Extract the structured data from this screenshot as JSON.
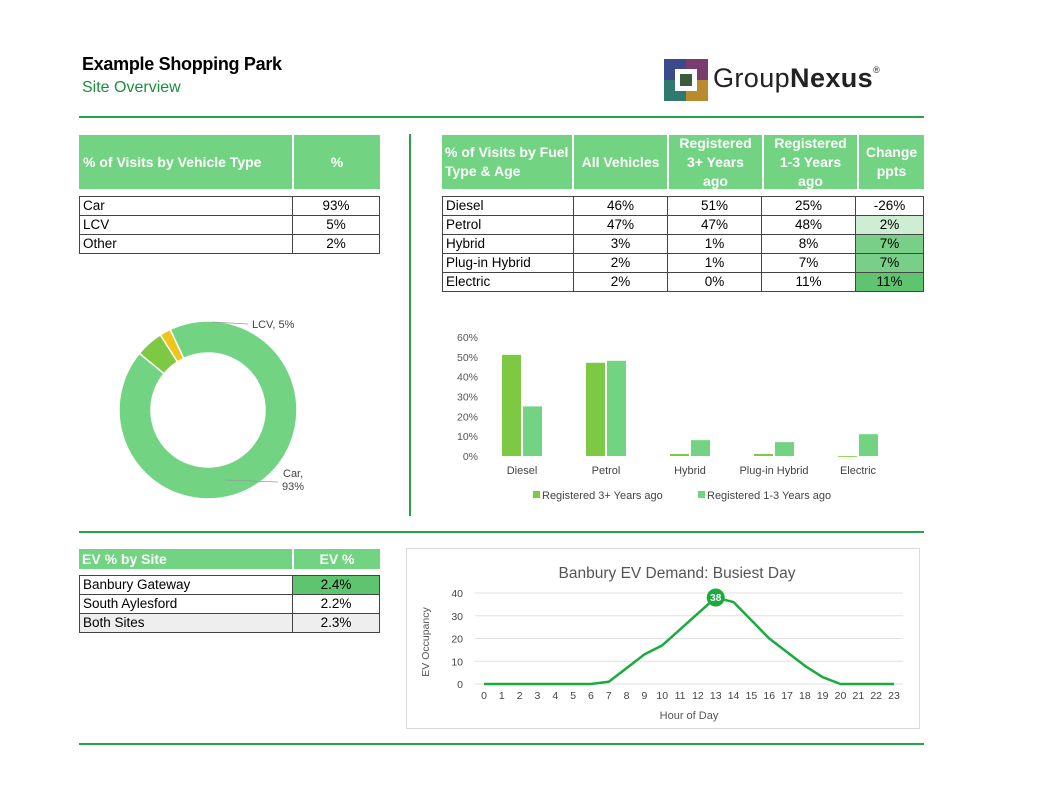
{
  "header": {
    "title": "Example Shopping Park",
    "subtitle": "Site Overview"
  },
  "logo": {
    "text_regular": "Group",
    "text_bold": "Nexus",
    "mark": "®"
  },
  "vehicle_table": {
    "headers": [
      "% of Visits by Vehicle Type",
      "%"
    ],
    "rows": [
      {
        "label": "Car",
        "value": "93%"
      },
      {
        "label": "LCV",
        "value": "5%"
      },
      {
        "label": "Other",
        "value": "2%"
      }
    ]
  },
  "fuel_table": {
    "headers": [
      "% of Visits by Fuel Type & Age",
      "All Vehicles",
      "Registered 3+ Years ago",
      "Registered 1-3 Years ago",
      "Change ppts"
    ],
    "rows": [
      {
        "fuel": "Diesel",
        "all": "46%",
        "r3": "51%",
        "r1": "25%",
        "change": "-26%"
      },
      {
        "fuel": "Petrol",
        "all": "47%",
        "r3": "47%",
        "r1": "48%",
        "change": "2%"
      },
      {
        "fuel": "Hybrid",
        "all": "3%",
        "r3": "1%",
        "r1": "8%",
        "change": "7%"
      },
      {
        "fuel": "Plug-in Hybrid",
        "all": "2%",
        "r3": "1%",
        "r1": "7%",
        "change": "7%"
      },
      {
        "fuel": "Electric",
        "all": "2%",
        "r3": "0%",
        "r1": "11%",
        "change": "11%"
      }
    ]
  },
  "ev_table": {
    "headers": [
      "EV % by Site",
      "EV %"
    ],
    "rows": [
      {
        "site": "Banbury Gateway",
        "value": "2.4%"
      },
      {
        "site": "South Aylesford",
        "value": "2.2%"
      },
      {
        "site": "Both Sites",
        "value": "2.3%"
      }
    ]
  },
  "chart_data": [
    {
      "type": "pie",
      "variant": "donut",
      "labels": [
        "Car",
        "LCV",
        "Other"
      ],
      "values": [
        93,
        5,
        2
      ],
      "colors": [
        "#72d483",
        "#7ec943",
        "#f0c419"
      ],
      "data_labels": [
        [
          "Car,",
          "93%"
        ],
        [
          "LCV, 5%"
        ]
      ]
    },
    {
      "type": "bar",
      "categories": [
        "Diesel",
        "Petrol",
        "Hybrid",
        "Plug-in Hybrid",
        "Electric"
      ],
      "series": [
        {
          "name": "Registered 3+ Years ago",
          "values": [
            51,
            47,
            1,
            1,
            0
          ],
          "color": "#7ec943"
        },
        {
          "name": "Registered 1-3 Years ago",
          "values": [
            25,
            48,
            8,
            7,
            11
          ],
          "color": "#72d483"
        }
      ],
      "ylim": [
        0,
        60
      ],
      "yticks": [
        "0%",
        "10%",
        "20%",
        "30%",
        "40%",
        "50%",
        "60%"
      ],
      "legend": "bottom"
    },
    {
      "type": "line",
      "title": "Banbury EV Demand: Busiest Day",
      "xlabel": "Hour of Day",
      "ylabel": "EV Occupancy",
      "x": [
        0,
        1,
        2,
        3,
        4,
        5,
        6,
        7,
        8,
        9,
        10,
        11,
        12,
        13,
        14,
        15,
        16,
        17,
        18,
        19,
        20,
        21,
        22,
        23
      ],
      "y": [
        0,
        0,
        0,
        0,
        0,
        0,
        0,
        1,
        7,
        13,
        17,
        24,
        31,
        38,
        36,
        28,
        20,
        14,
        8,
        3,
        0,
        0,
        0,
        0
      ],
      "ylim": [
        0,
        40
      ],
      "yticks": [
        0,
        10,
        20,
        30,
        40
      ],
      "grid": true,
      "peak_label": "38",
      "color": "#1aab3f"
    }
  ]
}
